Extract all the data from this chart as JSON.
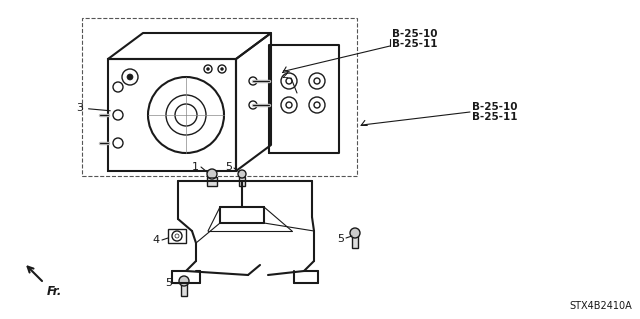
{
  "bg_color": "#ffffff",
  "diagram_code": "STX4B2410A",
  "labels": {
    "fr_label": "Fr.",
    "b_top": "B-25-10\nB-25-11",
    "b_right": "B-25-10\nB-25-11",
    "part_1": "1",
    "part_2": "2",
    "part_3": "3",
    "part_4": "4",
    "part_5": "5"
  },
  "figsize": [
    6.4,
    3.19
  ],
  "dpi": 100
}
